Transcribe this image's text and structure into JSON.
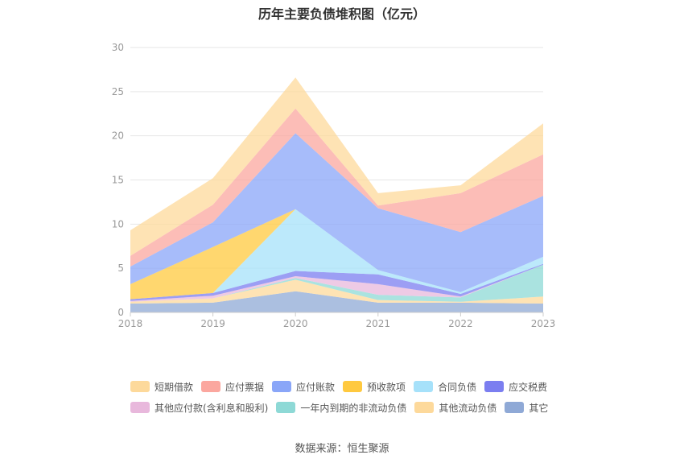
{
  "chart_data": {
    "type": "area",
    "stacked": true,
    "title": "历年主要负债堆积图（亿元）",
    "categories": [
      "2018",
      "2019",
      "2020",
      "2021",
      "2022",
      "2023"
    ],
    "ylim": [
      0,
      30
    ],
    "yticks": [
      0,
      5,
      10,
      15,
      20,
      25,
      30
    ],
    "grid": true,
    "legend_position": "bottom",
    "series": [
      {
        "name": "其它",
        "color": "#8fa9d6",
        "values": [
          1.0,
          1.1,
          2.4,
          1.1,
          1.1,
          1.0
        ]
      },
      {
        "name": "其他流动负债",
        "color": "#fdd99b",
        "values": [
          0.2,
          0.5,
          1.3,
          0.3,
          0.1,
          0.8
        ]
      },
      {
        "name": "一年内到期的非流动负债",
        "color": "#8ed9d6",
        "values": [
          0.0,
          0.0,
          0.2,
          0.6,
          0.5,
          3.6
        ]
      },
      {
        "name": "其他应付款(含利息和股利)",
        "color": "#e8b8dc",
        "values": [
          0.1,
          0.3,
          0.2,
          1.2,
          0.1,
          0.0
        ]
      },
      {
        "name": "应交税费",
        "color": "#7b7ef0",
        "values": [
          0.2,
          0.3,
          0.6,
          1.1,
          0.3,
          0.1
        ]
      },
      {
        "name": "合同负债",
        "color": "#a6e1fa",
        "values": [
          0.0,
          0.0,
          7.0,
          0.5,
          0.2,
          0.8
        ]
      },
      {
        "name": "预收款项",
        "color": "#ffc93f",
        "values": [
          1.7,
          5.2,
          0.0,
          0.0,
          0.0,
          0.0
        ]
      },
      {
        "name": "应付账款",
        "color": "#8aa6f8",
        "values": [
          2.0,
          2.8,
          8.6,
          7.0,
          6.8,
          6.9
        ]
      },
      {
        "name": "应付票据",
        "color": "#fba79f",
        "values": [
          1.2,
          2.0,
          2.8,
          0.3,
          4.4,
          4.7
        ]
      },
      {
        "name": "短期借款",
        "color": "#fdd99b",
        "values": [
          2.9,
          3.0,
          3.5,
          1.4,
          0.9,
          3.5
        ]
      }
    ],
    "legend_order": [
      "短期借款",
      "应付票据",
      "应付账款",
      "预收款项",
      "合同负债",
      "应交税费",
      "其他应付款(含利息和股利)",
      "一年内到期的非流动负债",
      "其他流动负债",
      "其它"
    ]
  },
  "source_text": "数据来源：恒生聚源",
  "colors": {
    "axis": "#cccccc",
    "grid": "#e6e6e6",
    "tick_text": "#999999"
  }
}
